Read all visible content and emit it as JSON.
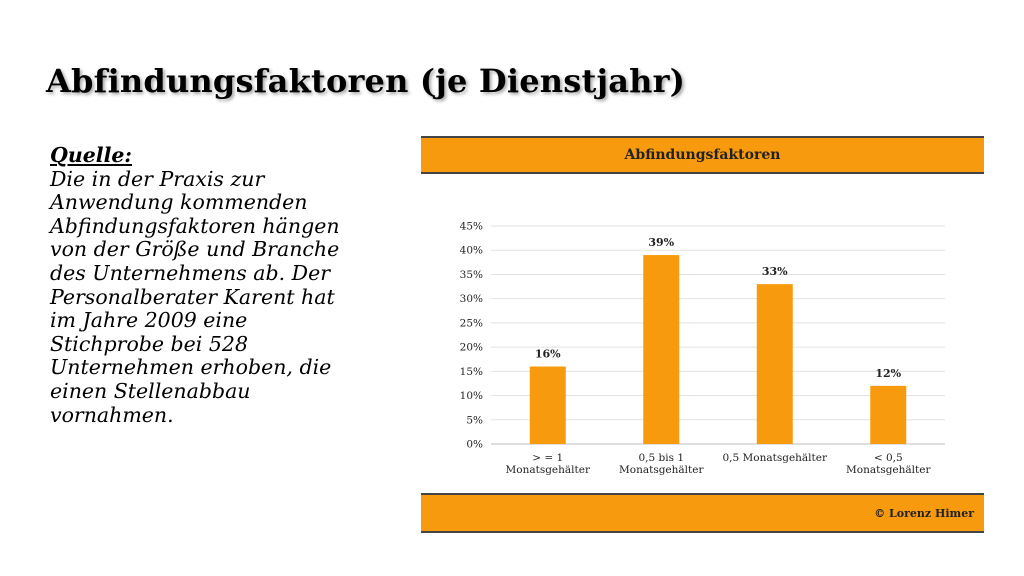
{
  "slide": {
    "title": "Abfindungsfaktoren (je Dienstjahr)",
    "source_label": "Quelle:",
    "body_lines": [
      "Die in der Praxis zur",
      "Anwendung kommenden",
      "Abfindungsfaktoren hängen",
      "von der Größe und Branche",
      "des Unternehmens ab. Der",
      "Personalberater Karent  hat",
      "im Jahre 2009 eine",
      "Stichprobe bei 528",
      "Unternehmen erhoben, die",
      "einen Stellenabbau",
      "vornahmen."
    ]
  },
  "chart_data": {
    "type": "bar",
    "title": "Abfindungsfaktoren",
    "footer": "© Lorenz Himer",
    "categories": [
      [
        "> = 1",
        "Monatsgehälter"
      ],
      [
        "0,5 bis 1",
        "Monatsgehälter"
      ],
      [
        "0,5 Monatsgehälter"
      ],
      [
        "< 0,5",
        "Monatsgehälter"
      ]
    ],
    "values": [
      16,
      39,
      33,
      12
    ],
    "data_labels": [
      "16%",
      "39%",
      "33%",
      "12%"
    ],
    "ylim": [
      0,
      45
    ],
    "yticks": [
      0,
      5,
      10,
      15,
      20,
      25,
      30,
      35,
      40,
      45
    ],
    "ytick_labels": [
      "0%",
      "5%",
      "10%",
      "15%",
      "20%",
      "25%",
      "30%",
      "35%",
      "40%",
      "45%"
    ],
    "grid": true,
    "bar_color": "#f79a0d",
    "band_color": "#f79a0d"
  }
}
